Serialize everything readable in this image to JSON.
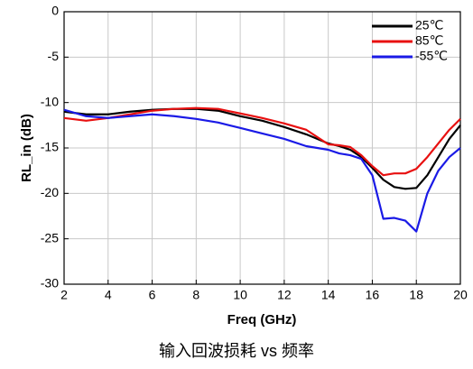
{
  "chart_data": {
    "type": "line",
    "title": "输入回波损耗 vs 频率",
    "x_label": "Freq (GHz)",
    "y_label": "RL_in (dB)",
    "x": [
      2,
      3,
      4,
      5,
      6,
      7,
      8,
      9,
      10,
      11,
      12,
      13,
      14,
      14.5,
      15,
      15.5,
      16,
      16.5,
      17,
      17.5,
      18,
      18.5,
      19,
      19.5,
      20
    ],
    "series": [
      {
        "name": "25℃",
        "color": "#000000",
        "values": [
          -11,
          -11.3,
          -11.3,
          -11,
          -10.8,
          -10.7,
          -10.7,
          -10.9,
          -11.5,
          -12,
          -12.7,
          -13.5,
          -14.5,
          -14.8,
          -15.2,
          -16,
          -17.2,
          -18.5,
          -19.3,
          -19.5,
          -19.4,
          -18,
          -16,
          -14,
          -12.5
        ]
      },
      {
        "name": "85℃",
        "color": "#e81010",
        "values": [
          -11.7,
          -12,
          -11.7,
          -11.3,
          -10.9,
          -10.7,
          -10.6,
          -10.7,
          -11.2,
          -11.7,
          -12.3,
          -13,
          -14.6,
          -14.7,
          -14.9,
          -15.8,
          -17,
          -18,
          -17.8,
          -17.8,
          -17.3,
          -16,
          -14.5,
          -13,
          -11.8
        ]
      },
      {
        "name": "-55℃",
        "color": "#1a1ae6",
        "values": [
          -10.8,
          -11.5,
          -11.7,
          -11.5,
          -11.3,
          -11.5,
          -11.8,
          -12.2,
          -12.8,
          -13.4,
          -14,
          -14.8,
          -15.2,
          -15.6,
          -15.8,
          -16.2,
          -18,
          -22.8,
          -22.7,
          -23,
          -24.2,
          -20,
          -17.5,
          -16,
          -15
        ]
      }
    ],
    "xlim": [
      2,
      20
    ],
    "xticks": [
      2,
      4,
      6,
      8,
      10,
      12,
      14,
      16,
      18,
      20
    ],
    "ylim": [
      -30,
      0
    ],
    "yticks": [
      -30,
      -25,
      -20,
      -15,
      -10,
      -5,
      0
    ],
    "grid": true,
    "legend": "upper-right"
  }
}
